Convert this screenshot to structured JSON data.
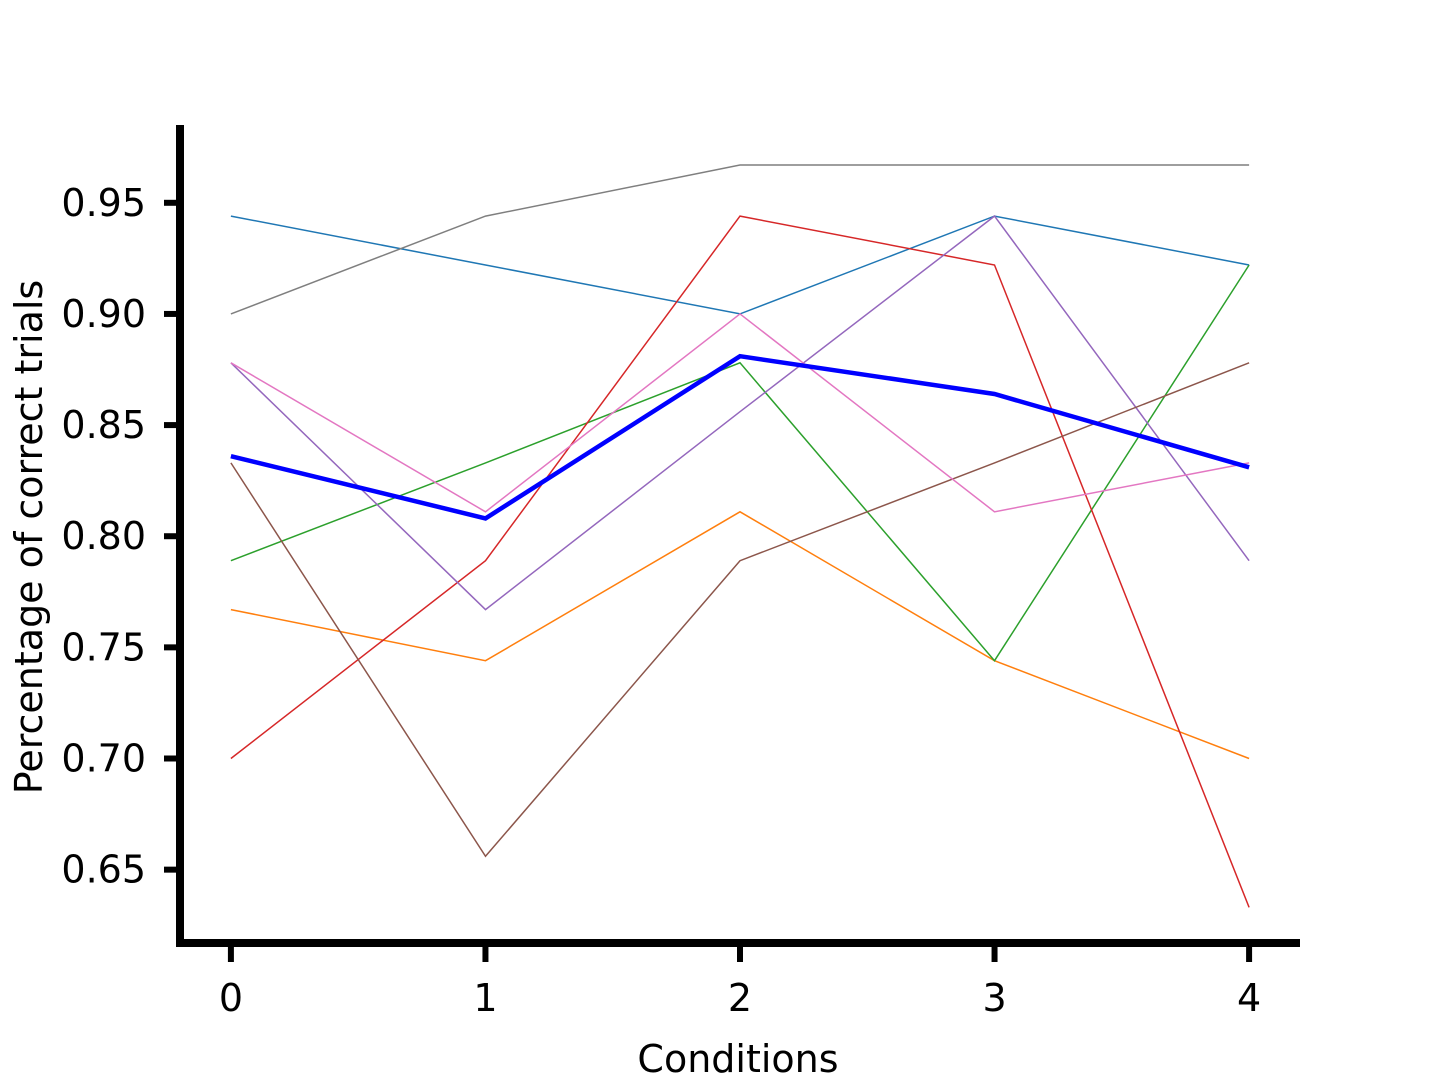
{
  "chart_data": {
    "type": "line",
    "xlabel": "Conditions",
    "ylabel": "Percentage of correct trials",
    "x": [
      0,
      1,
      2,
      3,
      4
    ],
    "xlim": [
      -0.2,
      4.2
    ],
    "ylim": [
      0.617,
      0.985
    ],
    "xticks": [
      0,
      1,
      2,
      3,
      4
    ],
    "yticks": [
      0.65,
      0.7,
      0.75,
      0.8,
      0.85,
      0.9,
      0.95
    ],
    "ytick_labels": [
      "0.65",
      "0.70",
      "0.75",
      "0.80",
      "0.85",
      "0.90",
      "0.95"
    ],
    "grid": false,
    "legend": "none",
    "series": [
      {
        "color": "#1f77b4",
        "values": [
          0.944,
          0.922,
          0.9,
          0.944,
          0.922
        ]
      },
      {
        "color": "#ff7f0e",
        "values": [
          0.767,
          0.744,
          0.811,
          0.744,
          0.7
        ]
      },
      {
        "color": "#2ca02c",
        "values": [
          0.789,
          0.833,
          0.878,
          0.744,
          0.922
        ]
      },
      {
        "color": "#d62728",
        "values": [
          0.7,
          0.789,
          0.944,
          0.922,
          0.633
        ]
      },
      {
        "color": "#9467bd",
        "values": [
          0.878,
          0.767,
          0.856,
          0.944,
          0.789
        ]
      },
      {
        "color": "#8c564b",
        "values": [
          0.833,
          0.656,
          0.789,
          0.833,
          0.878
        ]
      },
      {
        "color": "#e377c2",
        "values": [
          0.878,
          0.811,
          0.9,
          0.811,
          0.833
        ]
      },
      {
        "color": "#7f7f7f",
        "values": [
          0.9,
          0.944,
          0.967,
          0.967,
          0.967
        ]
      },
      {
        "color": "#0000ff",
        "values": [
          0.836,
          0.808,
          0.881,
          0.864,
          0.831
        ],
        "emphasis": "mean"
      }
    ]
  }
}
